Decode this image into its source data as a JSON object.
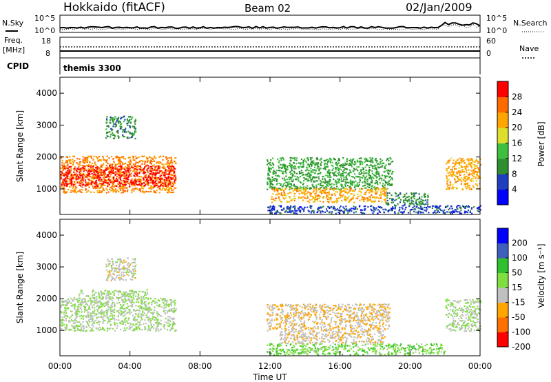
{
  "header": {
    "station": "Hokkaido (fitACF)",
    "beam": "Beam 02",
    "date": "02/Jan/2009"
  },
  "left_labels": {
    "nsky": "N.Sky",
    "freq_line1": "Freq.",
    "freq_line2": "[MHz]",
    "cpid": "CPID"
  },
  "right_labels": {
    "nsearch": "N.Search",
    "nave": "Nave"
  },
  "cpid_text": "themis 3300",
  "noise_axis_left": [
    "10^5",
    "10^0"
  ],
  "noise_axis_right": [
    "10^5",
    "10^0"
  ],
  "freq_axis_left": [
    "18",
    "8"
  ],
  "freq_axis_right": [
    "60",
    "0"
  ],
  "colors": {
    "power_scale": [
      "#0000ff",
      "#1f3fbf",
      "#2f8f2f",
      "#3fbf3f",
      "#dede2e",
      "#ffa500",
      "#ff6a00",
      "#ff0000"
    ],
    "velocity_scale": [
      "#0000ff",
      "#3f5fbf",
      "#2fbf2f",
      "#7fdf3f",
      "#c0c0c0",
      "#ffa500",
      "#ff7000",
      "#ff0000"
    ]
  },
  "chart_data": [
    {
      "type": "heatmap",
      "panel": "power",
      "ylabel": "Slant Range [km]",
      "xlabel": "Time UT",
      "x_ticks": [
        "00:00",
        "04:00",
        "08:00",
        "12:00",
        "16:00",
        "20:00",
        "00:00"
      ],
      "y_ticks": [
        "1000",
        "2000",
        "3000",
        "4000"
      ],
      "ylim": [
        200,
        4500
      ],
      "xlim_hours": [
        0,
        24
      ],
      "colorbar_label": "Power [dB]",
      "colorbar_ticks": [
        "28",
        "24",
        "20",
        "16",
        "12",
        "8",
        "4"
      ],
      "cb_range": [
        0,
        32
      ],
      "regions": [
        {
          "t0": 0.0,
          "t1": 6.6,
          "r0": 900,
          "r1": 2050,
          "value": 24
        },
        {
          "t0": 0.0,
          "t1": 6.6,
          "r0": 1100,
          "r1": 1750,
          "value": 30
        },
        {
          "t0": 2.6,
          "t1": 4.3,
          "r0": 2600,
          "r1": 3300,
          "value": 10
        },
        {
          "t0": 11.8,
          "t1": 19.0,
          "r0": 1000,
          "r1": 2000,
          "value": 12
        },
        {
          "t0": 12.0,
          "t1": 18.6,
          "r0": 600,
          "r1": 1050,
          "value": 22
        },
        {
          "t0": 18.6,
          "t1": 21.0,
          "r0": 500,
          "r1": 900,
          "value": 10
        },
        {
          "t0": 11.8,
          "t1": 24.0,
          "r0": 250,
          "r1": 500,
          "value": 6
        },
        {
          "t0": 22.0,
          "t1": 24.0,
          "r0": 1000,
          "r1": 2000,
          "value": 22
        }
      ]
    },
    {
      "type": "heatmap",
      "panel": "velocity",
      "ylabel": "Slant Range [km]",
      "xlabel": "Time UT",
      "x_ticks": [
        "00:00",
        "04:00",
        "08:00",
        "12:00",
        "16:00",
        "20:00",
        "00:00"
      ],
      "y_ticks": [
        "1000",
        "2000",
        "3000",
        "4000"
      ],
      "ylim": [
        200,
        4500
      ],
      "xlim_hours": [
        0,
        24
      ],
      "colorbar_label": "Velocity [m s⁻¹]",
      "colorbar_ticks": [
        "200",
        "100",
        "50",
        "15",
        "-15",
        "-50",
        "-100",
        "-200"
      ],
      "cb_range": [
        -250,
        250
      ],
      "regions": [
        {
          "t0": 0.0,
          "t1": 6.6,
          "r0": 1000,
          "r1": 2050,
          "value": 0
        },
        {
          "t0": 1.0,
          "t1": 5.0,
          "r0": 2000,
          "r1": 2300,
          "value": 0
        },
        {
          "t0": 2.6,
          "t1": 4.3,
          "r0": 2600,
          "r1": 3300,
          "value": -30
        },
        {
          "t0": 11.8,
          "t1": 18.8,
          "r0": 1000,
          "r1": 1850,
          "value": -60
        },
        {
          "t0": 12.5,
          "t1": 18.6,
          "r0": 600,
          "r1": 1000,
          "value": -45
        },
        {
          "t0": 11.8,
          "t1": 22.0,
          "r0": 250,
          "r1": 600,
          "value": 40
        },
        {
          "t0": 22.0,
          "t1": 24.0,
          "r0": 1000,
          "r1": 2000,
          "value": 0
        }
      ]
    }
  ]
}
